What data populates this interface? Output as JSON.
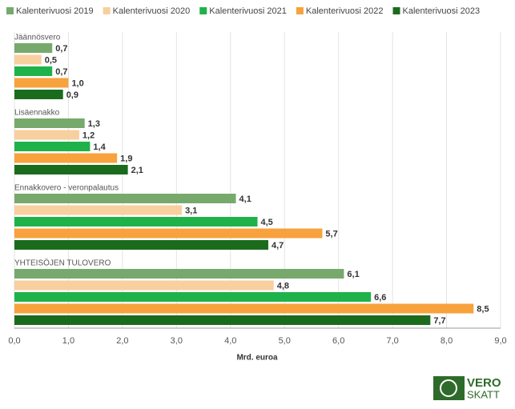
{
  "chart_data": {
    "type": "hbar",
    "x_label": "Mrd. euroa",
    "categories": [
      "Jäännösvero",
      "Lisäennakko",
      "Ennakkovero - veronpalautus",
      "YHTEISÖJEN TULOVERO"
    ],
    "series": [
      {
        "name": "Kalenterivuosi 2019",
        "color": "#78a96c",
        "values": [
          0.7,
          1.3,
          4.1,
          6.1
        ],
        "value_labels": [
          "0,7",
          "1,3",
          "4,1",
          "6,1"
        ]
      },
      {
        "name": "Kalenterivuosi 2020",
        "color": "#f8cf9f",
        "values": [
          0.5,
          1.2,
          3.1,
          4.8
        ],
        "value_labels": [
          "0,5",
          "1,2",
          "3,1",
          "4,8"
        ]
      },
      {
        "name": "Kalenterivuosi 2021",
        "color": "#1fb24a",
        "values": [
          0.7,
          1.4,
          4.5,
          6.6
        ],
        "value_labels": [
          "0,7",
          "1,4",
          "4,5",
          "6,6"
        ]
      },
      {
        "name": "Kalenterivuosi 2022",
        "color": "#f7a23c",
        "values": [
          1.0,
          1.9,
          5.7,
          8.5
        ],
        "value_labels": [
          "1,0",
          "1,9",
          "5,7",
          "8,5"
        ]
      },
      {
        "name": "Kalenterivuosi 2023",
        "color": "#1b6b1d",
        "values": [
          0.9,
          2.1,
          4.7,
          7.7
        ],
        "value_labels": [
          "0,9",
          "2,1",
          "4,7",
          "7,7"
        ]
      }
    ],
    "xlim": [
      0,
      9
    ],
    "xticks": [
      {
        "value": 0,
        "label": "0,0"
      },
      {
        "value": 1,
        "label": "1,0"
      },
      {
        "value": 2,
        "label": "2,0"
      },
      {
        "value": 3,
        "label": "3,0"
      },
      {
        "value": 4,
        "label": "4,0"
      },
      {
        "value": 5,
        "label": "5,0"
      },
      {
        "value": 6,
        "label": "6,0"
      },
      {
        "value": 7,
        "label": "7,0"
      },
      {
        "value": 8,
        "label": "8,0"
      },
      {
        "value": 9,
        "label": "9,0"
      }
    ],
    "grid": true,
    "legend": "top"
  },
  "logo": {
    "line1": "VERO",
    "line2": "SKATT"
  }
}
